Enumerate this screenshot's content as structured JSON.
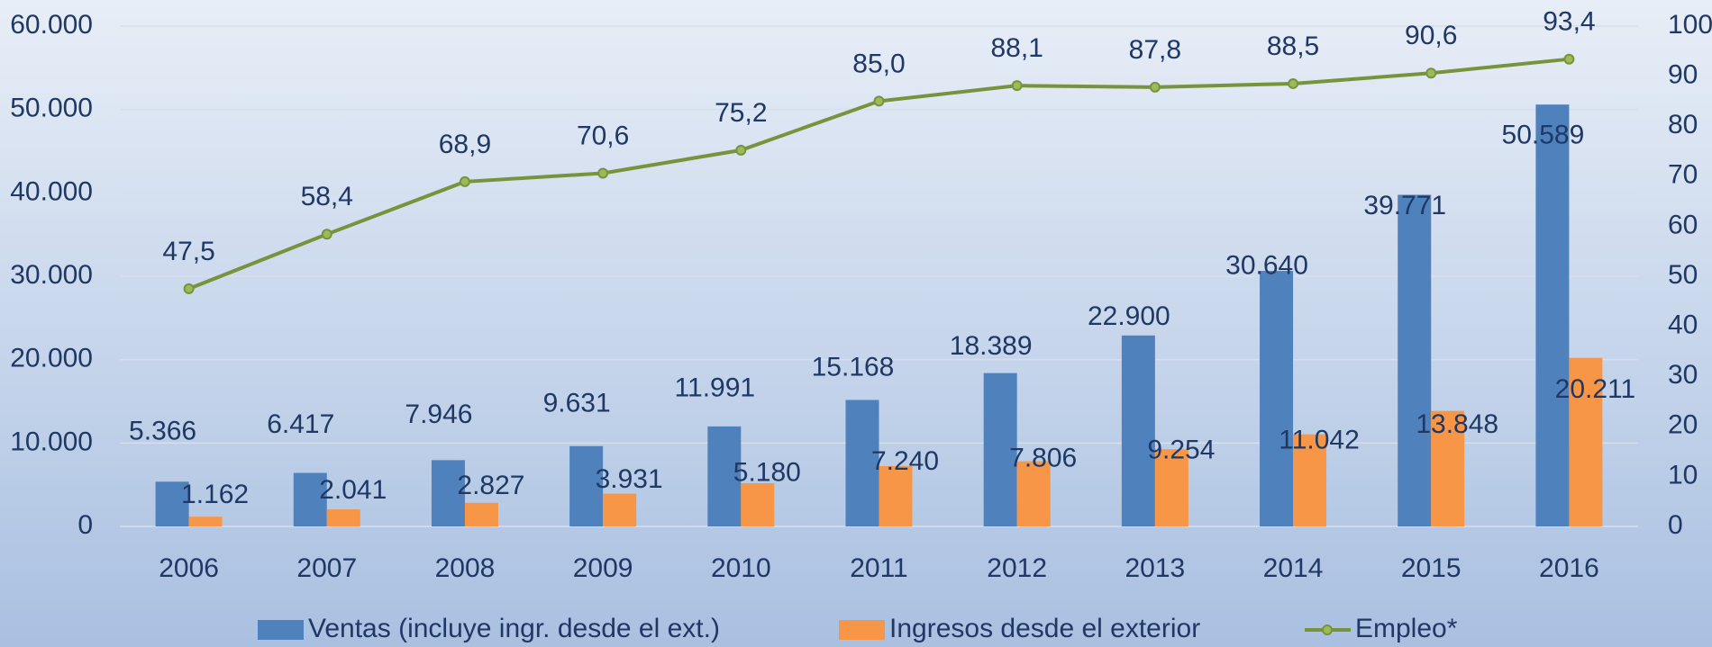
{
  "chart_data": {
    "type": "bar",
    "categories": [
      "2006",
      "2007",
      "2008",
      "2009",
      "2010",
      "2011",
      "2012",
      "2013",
      "2014",
      "2015",
      "2016"
    ],
    "series": [
      {
        "name": "Ventas (incluye ingr. desde el ext.)",
        "color": "#4f81bd",
        "type": "bar",
        "values": [
          5366,
          6417,
          7946,
          9631,
          11991,
          15168,
          18389,
          22900,
          30640,
          39771,
          50589
        ],
        "value_labels": [
          "5.366",
          "6.417",
          "7.946",
          "9.631",
          "11.991",
          "15.168",
          "18.389",
          "22.900",
          "30.640",
          "39.771",
          "50.589"
        ]
      },
      {
        "name": "Ingresos desde el exterior",
        "color": "#f79646",
        "type": "bar",
        "values": [
          1162,
          2041,
          2827,
          3931,
          5180,
          7240,
          7806,
          9254,
          11042,
          13848,
          20211
        ],
        "value_labels": [
          "1.162",
          "2.041",
          "2.827",
          "3.931",
          "5.180",
          "7.240",
          "7.806",
          "9.254",
          "11.042",
          "13.848",
          "20.211"
        ]
      },
      {
        "name": "Empleo*",
        "color": "#77933c",
        "type": "line",
        "axis": "y2",
        "values": [
          47.5,
          58.4,
          68.9,
          70.6,
          75.2,
          85.0,
          88.1,
          87.8,
          88.5,
          90.6,
          93.4
        ],
        "value_labels": [
          "47,5",
          "58,4",
          "68,9",
          "70,6",
          "75,2",
          "85,0",
          "88,1",
          "87,8",
          "88,5",
          "90,6",
          "93,4"
        ]
      }
    ],
    "ylim": [
      0,
      60000
    ],
    "yticks": [
      0,
      {
        "value": 10000,
        "label": "10.000"
      },
      {
        "value": 20000,
        "label": "20.000"
      },
      {
        "value": 30000,
        "label": "30.000"
      },
      {
        "value": 40000,
        "label": "40.000"
      },
      {
        "value": 50000,
        "label": "50.000"
      },
      {
        "value": 60000,
        "label": "60.000"
      }
    ],
    "y2lim": [
      0,
      100
    ],
    "y2ticks": [
      0,
      10,
      20,
      30,
      40,
      50,
      60,
      70,
      80,
      90,
      100
    ],
    "grid": true,
    "legend": "bottom"
  }
}
